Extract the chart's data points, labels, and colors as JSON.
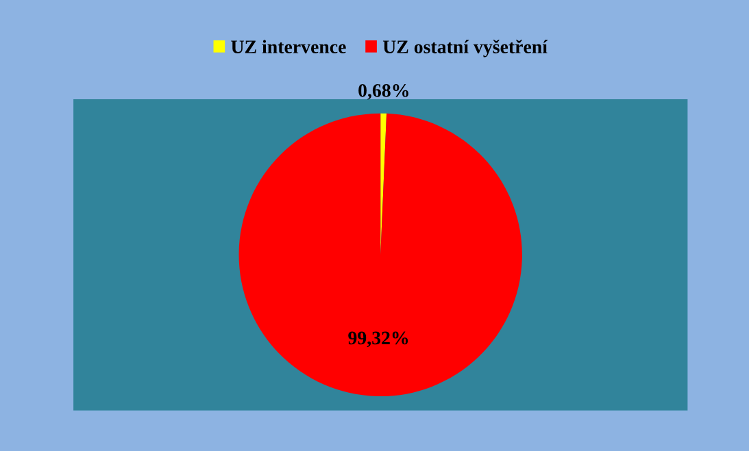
{
  "chart_data": {
    "type": "pie",
    "categories": [
      "UZ intervence",
      "UZ ostatní vyšetření"
    ],
    "values": [
      0.68,
      99.32
    ],
    "colors": [
      "#ffff00",
      "#ff0000"
    ],
    "value_labels": [
      "0,68%",
      "99,32%"
    ],
    "legend": "top"
  }
}
